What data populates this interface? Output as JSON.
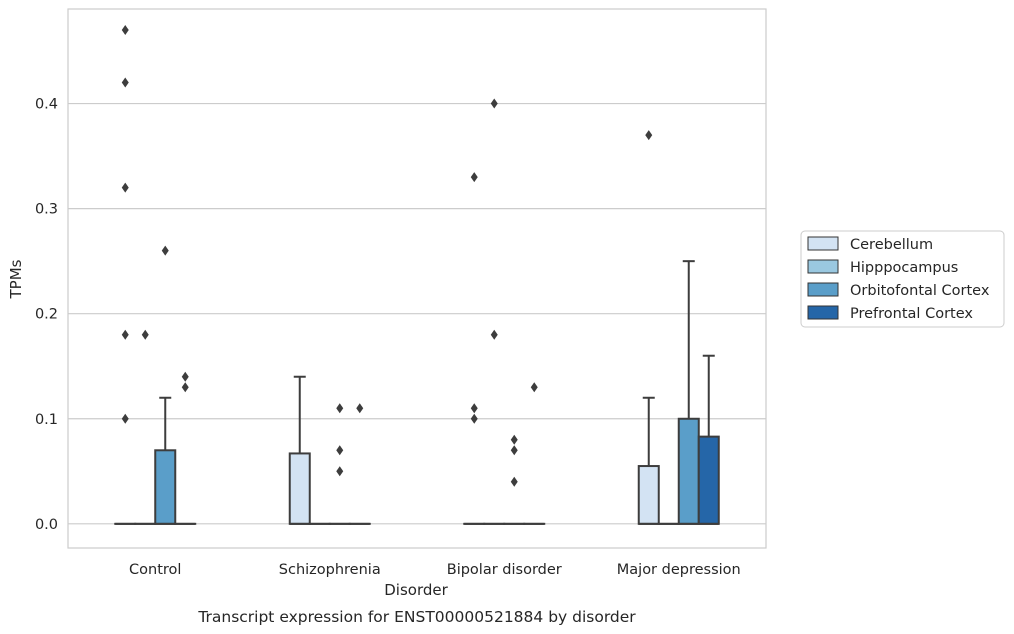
{
  "chart_data": {
    "type": "box",
    "title": "",
    "caption": "Transcript expression for ENST00000521884 by disorder",
    "xlabel": "Disorder",
    "ylabel": "TPMs",
    "ylim": [
      -0.023,
      0.49
    ],
    "yticks": [
      0.0,
      0.1,
      0.2,
      0.3,
      0.4
    ],
    "ytick_labels": [
      "0.0",
      "0.1",
      "0.2",
      "0.3",
      "0.4"
    ],
    "grid": true,
    "legend_position": "right",
    "categories": [
      "Control",
      "Schizophrenia",
      "Bipolar disorder",
      "Major depression"
    ],
    "series": [
      {
        "name": "Cerebellum",
        "color": "#d3e3f3"
      },
      {
        "name": "Hipppocampus",
        "color": "#9ac8e0"
      },
      {
        "name": "Orbitofontal Cortex",
        "color": "#5a9ec9"
      },
      {
        "name": "Prefrontal Cortex",
        "color": "#2566a8"
      }
    ],
    "boxes": [
      [
        {
          "q1": 0,
          "median": 0,
          "q3": 0,
          "whislo": 0,
          "whishi": 0,
          "fliers": [
            0.1,
            0.18,
            0.32,
            0.42,
            0.47
          ]
        },
        {
          "q1": 0,
          "median": 0,
          "q3": 0,
          "whislo": 0,
          "whishi": 0,
          "fliers": [
            0.18
          ]
        },
        {
          "q1": 0,
          "median": 0,
          "q3": 0.07,
          "whislo": 0,
          "whishi": 0.12,
          "fliers": [
            0.26
          ]
        },
        {
          "q1": 0,
          "median": 0,
          "q3": 0,
          "whislo": 0,
          "whishi": 0,
          "fliers": [
            0.13,
            0.14
          ]
        }
      ],
      [
        {
          "q1": 0,
          "median": 0,
          "q3": 0.067,
          "whislo": 0,
          "whishi": 0.14,
          "fliers": []
        },
        {
          "q1": 0,
          "median": 0,
          "q3": 0,
          "whislo": 0,
          "whishi": 0,
          "fliers": []
        },
        {
          "q1": 0,
          "median": 0,
          "q3": 0,
          "whislo": 0,
          "whishi": 0,
          "fliers": [
            0.05,
            0.07,
            0.11
          ]
        },
        {
          "q1": 0,
          "median": 0,
          "q3": 0,
          "whislo": 0,
          "whishi": 0,
          "fliers": [
            0.11
          ]
        }
      ],
      [
        {
          "q1": 0,
          "median": 0,
          "q3": 0,
          "whislo": 0,
          "whishi": 0,
          "fliers": [
            0.1,
            0.11,
            0.33
          ]
        },
        {
          "q1": 0,
          "median": 0,
          "q3": 0,
          "whislo": 0,
          "whishi": 0,
          "fliers": [
            0.18,
            0.4
          ]
        },
        {
          "q1": 0,
          "median": 0,
          "q3": 0,
          "whislo": 0,
          "whishi": 0,
          "fliers": [
            0.04,
            0.07,
            0.08
          ]
        },
        {
          "q1": 0,
          "median": 0,
          "q3": 0,
          "whislo": 0,
          "whishi": 0,
          "fliers": [
            0.13
          ]
        }
      ],
      [
        {
          "q1": 0,
          "median": 0,
          "q3": 0.055,
          "whislo": 0,
          "whishi": 0.12,
          "fliers": [
            0.37
          ]
        },
        {
          "q1": 0,
          "median": 0,
          "q3": 0,
          "whislo": 0,
          "whishi": 0,
          "fliers": []
        },
        {
          "q1": 0,
          "median": 0,
          "q3": 0.1,
          "whislo": 0,
          "whishi": 0.25,
          "fliers": []
        },
        {
          "q1": 0,
          "median": 0,
          "q3": 0.083,
          "whislo": 0,
          "whishi": 0.16,
          "fliers": []
        }
      ]
    ]
  },
  "colors": {
    "grid": "#cccccc",
    "axes_border": "#cccccc",
    "box_edge": "#3d3d3d",
    "flier": "#3d3d3d",
    "text": "#262626"
  }
}
